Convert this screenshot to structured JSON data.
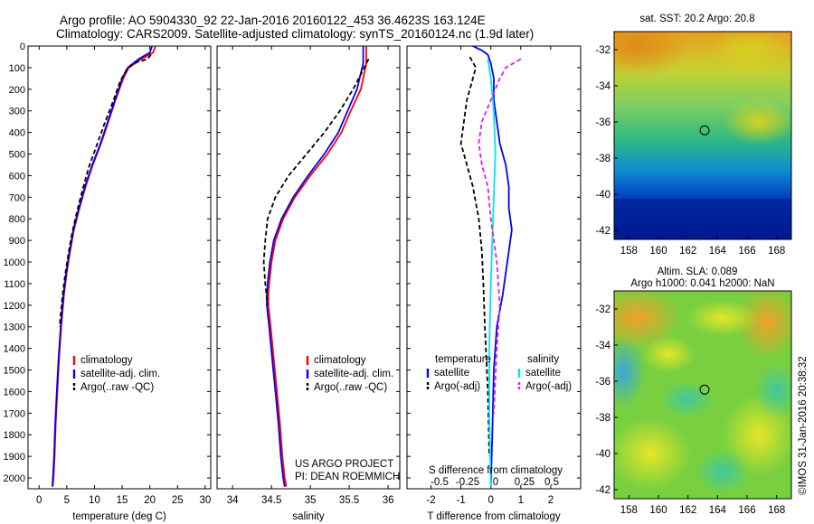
{
  "header": {
    "line1": "Argo profile: AO 5904330_92 22-Jan-2016 20160122_453 36.4623S 163.124E",
    "line2": "Climatology: CARS2009. Satellite-adjusted climatology: synTS_20160124.nc (1.9d later)"
  },
  "colors": {
    "climatology": "#ff0000",
    "satellite": "#0000ff",
    "argo": "#000000",
    "sat_salinity": "#00e5ee",
    "argo_salinity": "#e020e0"
  },
  "chart_data": [
    {
      "type": "line",
      "id": "temperature",
      "xlabel": "temperature (deg C)",
      "ylabel": "",
      "xlim": [
        -2,
        31
      ],
      "ylim": [
        2050,
        0
      ],
      "xticks": [
        0,
        5,
        10,
        15,
        20,
        25,
        30
      ],
      "yticks": [
        0,
        100,
        200,
        300,
        400,
        500,
        600,
        700,
        800,
        900,
        1000,
        1100,
        1200,
        1300,
        1400,
        1500,
        1600,
        1700,
        1800,
        1900,
        2000
      ],
      "legend": [
        "climatology",
        "satellite-adj. clim.",
        "Argo(..raw -QC)"
      ],
      "series": [
        {
          "name": "climatology",
          "style": "solid",
          "color": "#ff0000",
          "x": [
            21.0,
            20.6,
            18.5,
            16.2,
            15.2,
            13.8,
            12.5,
            11.2,
            9.7,
            8.4,
            7.3,
            6.3,
            5.6,
            5.0,
            4.5,
            4.0,
            3.6,
            3.3,
            3.0,
            2.8,
            2.6,
            2.45
          ],
          "y": [
            0,
            30,
            60,
            100,
            150,
            250,
            350,
            450,
            550,
            650,
            750,
            850,
            950,
            1050,
            1150,
            1300,
            1450,
            1600,
            1750,
            1900,
            2000,
            2040
          ]
        },
        {
          "name": "satellite-adj. clim.",
          "style": "solid",
          "color": "#0000ff",
          "x": [
            20.4,
            20.0,
            18.0,
            16.0,
            15.0,
            13.7,
            12.4,
            11.1,
            9.6,
            8.3,
            7.2,
            6.2,
            5.5,
            4.9,
            4.4,
            3.9,
            3.5,
            3.2,
            2.9,
            2.7,
            2.5,
            2.4
          ],
          "y": [
            0,
            30,
            60,
            100,
            150,
            250,
            350,
            450,
            550,
            650,
            750,
            850,
            950,
            1050,
            1150,
            1300,
            1450,
            1600,
            1750,
            1900,
            2000,
            2040
          ]
        },
        {
          "name": "Argo(..raw -QC)",
          "style": "dashed",
          "color": "#000000",
          "x": [
            20.2,
            19.6,
            17.0,
            15.8,
            14.7,
            13.3,
            11.8,
            10.4,
            9.0,
            7.9,
            6.9,
            6.0,
            5.3,
            4.7,
            4.2,
            3.7
          ],
          "y": [
            40,
            60,
            80,
            110,
            160,
            260,
            360,
            460,
            560,
            660,
            760,
            860,
            960,
            1060,
            1160,
            1300
          ]
        }
      ]
    },
    {
      "type": "line",
      "id": "salinity",
      "xlabel": "salinity",
      "ylabel": "",
      "xlim": [
        33.8,
        36.15
      ],
      "ylim": [
        2050,
        0
      ],
      "xticks": [
        34,
        34.5,
        35,
        35.5,
        36
      ],
      "legend": [
        "climatology",
        "satellite-adj. clim.",
        "Argo(..raw -QC)"
      ],
      "annotation": [
        "US ARGO PROJECT",
        "PI: DEAN ROEMMICH"
      ],
      "series": [
        {
          "name": "climatology",
          "style": "solid",
          "color": "#ff0000",
          "x": [
            35.72,
            35.72,
            35.65,
            35.52,
            35.4,
            35.22,
            35.0,
            34.8,
            34.65,
            34.55,
            34.5,
            34.47,
            34.46,
            34.46,
            34.49,
            34.53,
            34.57,
            34.61,
            34.64,
            34.67,
            34.69
          ],
          "y": [
            0,
            80,
            200,
            300,
            400,
            500,
            600,
            700,
            800,
            900,
            1000,
            1100,
            1150,
            1200,
            1300,
            1450,
            1600,
            1750,
            1900,
            2000,
            2040
          ]
        },
        {
          "name": "satellite-adj. clim.",
          "style": "solid",
          "color": "#0000ff",
          "x": [
            35.68,
            35.68,
            35.6,
            35.48,
            35.36,
            35.18,
            34.97,
            34.78,
            34.63,
            34.53,
            34.48,
            34.45,
            34.44,
            34.44,
            34.47,
            34.51,
            34.55,
            34.59,
            34.62,
            34.65,
            34.67
          ],
          "y": [
            0,
            80,
            200,
            300,
            400,
            500,
            600,
            700,
            800,
            900,
            1000,
            1100,
            1150,
            1200,
            1300,
            1450,
            1600,
            1750,
            1900,
            2000,
            2040
          ]
        },
        {
          "name": "Argo(..raw -QC)",
          "style": "dashed",
          "color": "#000000",
          "x": [
            35.75,
            35.55,
            35.38,
            35.18,
            34.95,
            34.72,
            34.55,
            34.45,
            34.42,
            34.4,
            34.42,
            34.45
          ],
          "y": [
            60,
            200,
            300,
            400,
            500,
            600,
            700,
            800,
            900,
            1000,
            1100,
            1200
          ]
        }
      ]
    },
    {
      "type": "line",
      "id": "differences",
      "xlabel": "T difference from climatology",
      "x2label": "S difference from climatology",
      "xlim": [
        -2.8,
        3.0
      ],
      "ylim": [
        2050,
        0
      ],
      "xticks": [
        -2,
        -1,
        0,
        1,
        2
      ],
      "x2ticks": [
        -0.5,
        -0.25,
        0,
        0.25,
        0.5
      ],
      "x2tick_labels": [
        "-0.5",
        "-0.25",
        "0",
        "0.25",
        "0.5"
      ],
      "legend": {
        "temperature_header": "temperature",
        "salinity_header": "salinity",
        "temperature": [
          "satellite",
          "Argo(-adj)"
        ],
        "salinity": [
          "satellite",
          "Argo(-adj)"
        ]
      },
      "series": [
        {
          "name": "temperature satellite",
          "style": "solid",
          "color": "#0000ff",
          "x": [
            -0.6,
            -0.3,
            -0.1,
            0.0,
            0.1,
            0.1,
            0.2,
            0.3,
            0.5,
            0.6,
            0.6,
            0.7,
            0.6,
            0.5,
            0.4,
            0.2,
            0.1,
            0.05,
            0.0
          ],
          "y": [
            0,
            20,
            40,
            80,
            150,
            250,
            350,
            450,
            550,
            650,
            750,
            850,
            950,
            1050,
            1150,
            1300,
            1500,
            1800,
            2040
          ]
        },
        {
          "name": "temperature Argo(-adj)",
          "style": "dashed",
          "color": "#000000",
          "x": [
            -0.7,
            -0.5,
            -0.6,
            -0.8,
            -0.9,
            -1.0,
            -0.8,
            -0.6,
            -0.4,
            -0.3,
            -0.25,
            -0.2,
            -0.1,
            -0.05
          ],
          "y": [
            50,
            100,
            150,
            250,
            350,
            450,
            550,
            650,
            800,
            950,
            1100,
            1300,
            1600,
            1900
          ]
        },
        {
          "name": "salinity satellite",
          "style": "solid",
          "color": "#00e5ee",
          "x": [
            -0.1,
            0.0,
            0.1,
            0.15,
            0.1,
            0.05,
            0.0,
            -0.05,
            -0.05,
            0.0
          ],
          "y": [
            60,
            150,
            300,
            500,
            700,
            900,
            1100,
            1400,
            1700,
            2040
          ]
        },
        {
          "name": "salinity Argo(-adj)",
          "style": "dashed",
          "color": "#e020e0",
          "x": [
            1.0,
            0.5,
            0.3,
            0.0,
            -0.3,
            -0.4,
            -0.3,
            -0.1,
            0.0,
            0.2,
            0.3,
            0.2,
            0.1
          ],
          "y": [
            60,
            100,
            150,
            250,
            350,
            450,
            550,
            650,
            800,
            1000,
            1200,
            1400,
            1700
          ]
        }
      ]
    },
    {
      "type": "heatmap",
      "id": "sst_map",
      "title": "sat. SST: 20.2 Argo: 20.8",
      "xlim": [
        157,
        169
      ],
      "ylim": [
        -42.5,
        -31
      ],
      "xticks": [
        158,
        160,
        162,
        164,
        166,
        168
      ],
      "yticks": [
        -32,
        -34,
        -36,
        -38,
        -40,
        -42
      ],
      "marker": {
        "lon": 163.124,
        "lat": -36.4623
      }
    },
    {
      "type": "heatmap",
      "id": "sla_map",
      "title": [
        "Altim. SLA: 0.089",
        "Argo h1000: 0.041 h2000: NaN"
      ],
      "xlim": [
        157,
        169
      ],
      "ylim": [
        -42.5,
        -31
      ],
      "xticks": [
        158,
        160,
        162,
        164,
        166,
        168
      ],
      "yticks": [
        -32,
        -34,
        -36,
        -38,
        -40,
        -42
      ],
      "marker": {
        "lon": 163.124,
        "lat": -36.4623
      }
    }
  ],
  "credit": "©IMOS 31-Jan-2016 20:38:32"
}
